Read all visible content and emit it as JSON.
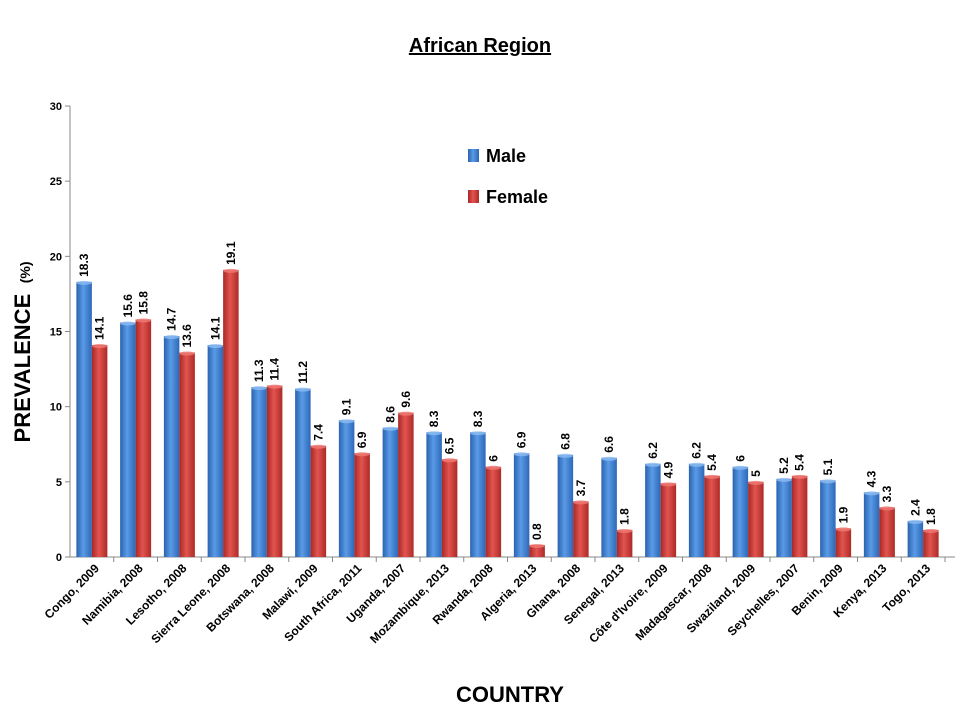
{
  "chart_data": {
    "type": "bar",
    "title": "African Region",
    "xlabel": "COUNTRY",
    "ylabel": "PREVALENCE",
    "ylabel_unit": "(%)",
    "ylim": [
      0,
      30
    ],
    "yticks": [
      "0",
      "5",
      "10",
      "15",
      "20",
      "25",
      "30"
    ],
    "grid": false,
    "legend_position": "top-center",
    "categories": [
      "Congo, 2009",
      "Namibia, 2008",
      "Lesotho, 2008",
      "Sierra Leone, 2008",
      "Botswana, 2008",
      "Malawi, 2009",
      "South Africa, 2011",
      "Uganda, 2007",
      "Mozambique, 2013",
      "Rwanda, 2008",
      "Algeria, 2013",
      "Ghana, 2008",
      "Senegal, 2013",
      "Côte d'Ivoire, 2009",
      "Madagascar, 2008",
      "Swaziland, 2009",
      "Seychelles, 2007",
      "Benin, 2009",
      "Kenya, 2013",
      "Togo, 2013"
    ],
    "series": [
      {
        "name": "Male",
        "color": "#3a7fd5",
        "values": [
          18.3,
          15.6,
          14.7,
          14.1,
          11.3,
          11.2,
          9.1,
          8.6,
          8.3,
          8.3,
          6.9,
          6.8,
          6.6,
          6.2,
          6.2,
          6,
          5.2,
          5.1,
          4.3,
          2.4
        ]
      },
      {
        "name": "Female",
        "color": "#d23a35",
        "values": [
          14.1,
          15.8,
          13.6,
          19.1,
          11.4,
          7.4,
          6.9,
          9.6,
          6.5,
          6,
          0.8,
          3.7,
          1.8,
          4.9,
          5.4,
          5,
          5.4,
          1.9,
          3.3,
          1.8
        ]
      }
    ]
  }
}
